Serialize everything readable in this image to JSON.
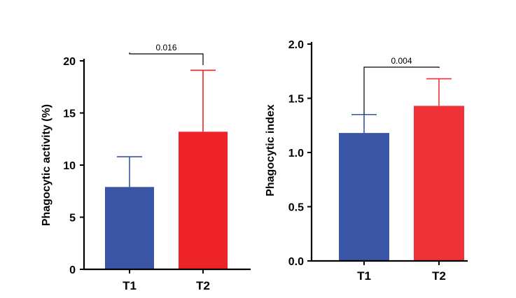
{
  "chart_data": [
    {
      "type": "bar",
      "ylabel": "Phagocytic activity (%)",
      "categories": [
        "T1",
        "T2"
      ],
      "values": [
        7.9,
        13.2
      ],
      "error_upper": [
        10.8,
        19.1
      ],
      "colors": [
        "#3a55a4",
        "#ee2327"
      ],
      "ylim": [
        0,
        20
      ],
      "yticks": [
        0,
        5,
        10,
        15,
        20
      ],
      "significance": {
        "label": "0.016",
        "left_y": 20.8,
        "right_y": 19.6
      }
    },
    {
      "type": "bar",
      "ylabel": "Phagocytic index",
      "categories": [
        "T1",
        "T2"
      ],
      "values": [
        1.18,
        1.43
      ],
      "error_upper": [
        1.35,
        1.68
      ],
      "colors": [
        "#3a55a4",
        "#ee3237"
      ],
      "ylim": [
        0,
        2.0
      ],
      "yticks": [
        "0.0",
        "0.5",
        "1.0",
        "1.5",
        "2.0"
      ],
      "significance": {
        "label": "0.004",
        "left_y": 1.35,
        "right_y": 1.78
      }
    }
  ]
}
